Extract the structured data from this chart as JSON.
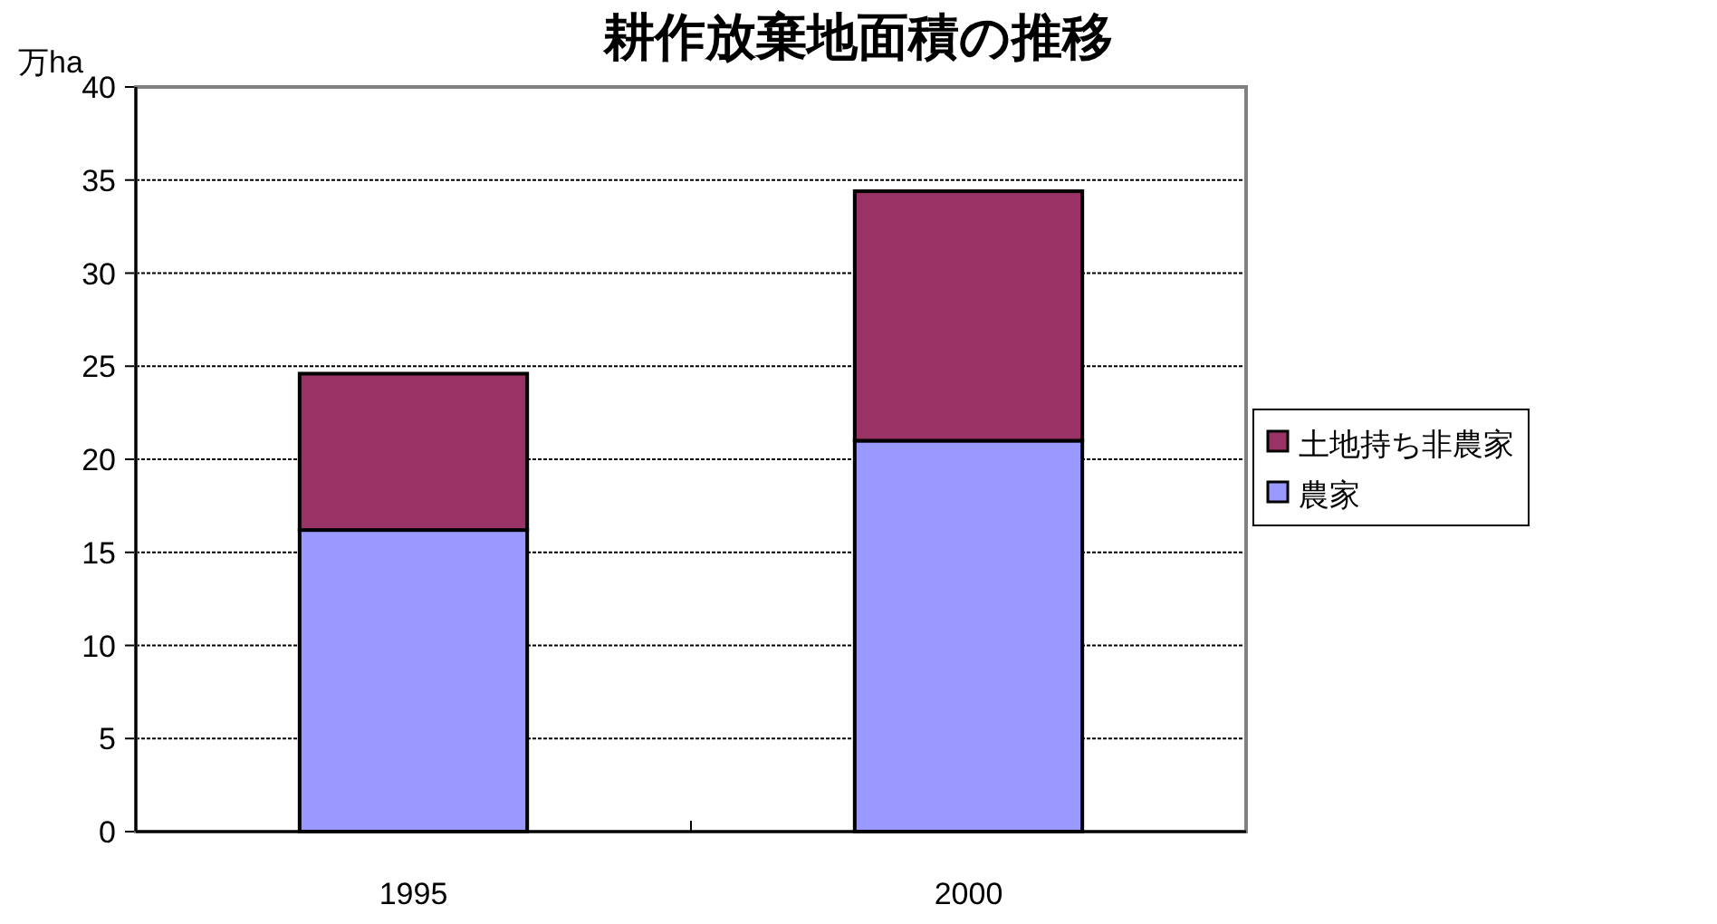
{
  "chart_data": {
    "type": "bar",
    "stacked": true,
    "title": "耕作放棄地面積の推移",
    "ylabel": "万ha",
    "categories": [
      "1995",
      "2000"
    ],
    "series": [
      {
        "name": "農家",
        "color": "#9999ff",
        "values": [
          16.2,
          21.0
        ]
      },
      {
        "name": "土地持ち非農家",
        "color": "#993366",
        "values": [
          8.4,
          13.4
        ]
      }
    ],
    "ylim": [
      0,
      40
    ],
    "yticks": [
      0,
      5,
      10,
      15,
      20,
      25,
      30,
      35,
      40
    ],
    "grid": "y",
    "legend": "right"
  }
}
